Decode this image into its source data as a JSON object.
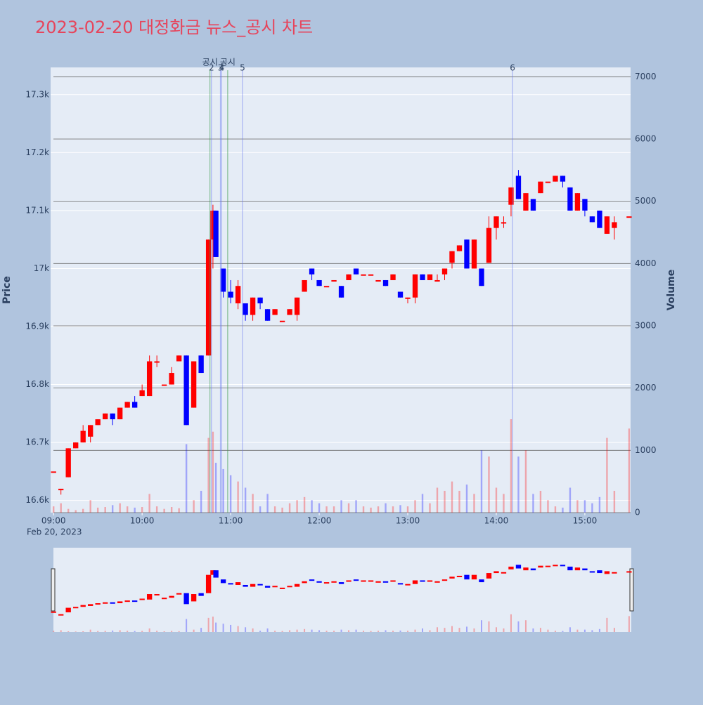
{
  "chart_data": {
    "type": "candlestick",
    "title": "2023-02-20 대정화금 뉴스_공시 차트",
    "yaxis_title": "Price",
    "y2axis_title": "Volume",
    "x_date_label": "Feb 20, 2023",
    "increasing_color": "#ff0000",
    "decreasing_color": "#0000ff",
    "x": [
      "09:00",
      "09:05",
      "09:10",
      "09:15",
      "09:20",
      "09:25",
      "09:30",
      "09:35",
      "09:40",
      "09:45",
      "09:50",
      "09:55",
      "10:00",
      "10:05",
      "10:10",
      "10:15",
      "10:20",
      "10:25",
      "10:30",
      "10:35",
      "10:40",
      "10:45",
      "10:48",
      "10:50",
      "10:55",
      "11:00",
      "11:05",
      "11:10",
      "11:15",
      "11:20",
      "11:25",
      "11:30",
      "11:35",
      "11:40",
      "11:45",
      "11:50",
      "11:55",
      "12:00",
      "12:05",
      "12:10",
      "12:15",
      "12:20",
      "12:25",
      "12:30",
      "12:35",
      "12:40",
      "12:45",
      "12:50",
      "12:55",
      "13:00",
      "13:05",
      "13:10",
      "13:15",
      "13:20",
      "13:25",
      "13:30",
      "13:35",
      "13:40",
      "13:45",
      "13:50",
      "13:55",
      "14:00",
      "14:05",
      "14:10",
      "14:15",
      "14:20",
      "14:25",
      "14:30",
      "14:35",
      "14:40",
      "14:45",
      "14:50",
      "14:55",
      "15:00",
      "15:05",
      "15:10",
      "15:15",
      "15:20",
      "15:30"
    ],
    "open": [
      16650,
      16620,
      16640,
      16690,
      16700,
      16710,
      16730,
      16740,
      16750,
      16740,
      16760,
      16770,
      16780,
      16780,
      16840,
      16800,
      16800,
      16840,
      16850,
      16760,
      16850,
      16850,
      17050,
      17100,
      17000,
      16960,
      16940,
      16940,
      16920,
      16950,
      16930,
      16920,
      16910,
      16920,
      16920,
      16960,
      17000,
      16980,
      16970,
      16980,
      16970,
      16980,
      17000,
      16990,
      16990,
      16980,
      16980,
      16980,
      16960,
      16950,
      16950,
      16990,
      16980,
      16980,
      16990,
      17010,
      17030,
      17050,
      17000,
      17000,
      17010,
      17070,
      17080,
      17110,
      17160,
      17100,
      17120,
      17130,
      17150,
      17150,
      17160,
      17140,
      17100,
      17120,
      17090,
      17100,
      17060,
      17070,
      17090
    ],
    "high": [
      16650,
      16620,
      16690,
      16700,
      16730,
      16730,
      16740,
      16750,
      16750,
      16760,
      16770,
      16780,
      16800,
      16850,
      16850,
      16800,
      16830,
      16850,
      16850,
      16840,
      16850,
      17050,
      17110,
      17100,
      17000,
      16980,
      16980,
      16940,
      16950,
      16950,
      16930,
      16930,
      16910,
      16930,
      16950,
      16980,
      17000,
      16980,
      16970,
      16980,
      16970,
      16990,
      17000,
      16990,
      16990,
      16980,
      16980,
      16990,
      16960,
      16950,
      16990,
      16990,
      16990,
      16990,
      17000,
      17030,
      17040,
      17050,
      17050,
      17000,
      17090,
      17090,
      17090,
      17140,
      17170,
      17130,
      17120,
      17150,
      17150,
      17160,
      17160,
      17140,
      17130,
      17120,
      17090,
      17100,
      17090,
      17090,
      17090
    ],
    "low": [
      16650,
      16610,
      16640,
      16690,
      16700,
      16700,
      16730,
      16740,
      16730,
      16740,
      16760,
      16760,
      16780,
      16780,
      16830,
      16800,
      16800,
      16840,
      16730,
      16760,
      16820,
      16850,
      17000,
      17020,
      16950,
      16940,
      16930,
      16910,
      16910,
      16930,
      16910,
      16920,
      16910,
      16920,
      16910,
      16960,
      16980,
      16970,
      16970,
      16980,
      16950,
      16980,
      16990,
      16990,
      16990,
      16980,
      16970,
      16980,
      16950,
      16940,
      16940,
      16980,
      16980,
      16980,
      16980,
      17000,
      17030,
      17000,
      17000,
      16970,
      17010,
      17050,
      17070,
      17090,
      17120,
      17100,
      17100,
      17130,
      17150,
      17150,
      17140,
      17100,
      17100,
      17090,
      17080,
      17070,
      17060,
      17050,
      17090
    ],
    "close": [
      16650,
      16620,
      16690,
      16700,
      16720,
      16730,
      16740,
      16750,
      16740,
      16760,
      16770,
      16760,
      16790,
      16840,
      16840,
      16800,
      16820,
      16850,
      16730,
      16840,
      16820,
      17050,
      17100,
      17020,
      16960,
      16950,
      16970,
      16920,
      16950,
      16940,
      16910,
      16930,
      16910,
      16930,
      16950,
      16980,
      16990,
      16970,
      16970,
      16980,
      16950,
      16990,
      16990,
      16990,
      16990,
      16980,
      16970,
      16990,
      16950,
      16950,
      16990,
      16980,
      16990,
      16980,
      17000,
      17030,
      17040,
      17000,
      17050,
      16970,
      17070,
      17090,
      17080,
      17140,
      17120,
      17130,
      17100,
      17150,
      17150,
      17160,
      17150,
      17100,
      17130,
      17100,
      17080,
      17070,
      17090,
      17080,
      17090
    ],
    "volume": [
      100,
      150,
      60,
      40,
      60,
      200,
      80,
      90,
      120,
      150,
      100,
      80,
      90,
      300,
      100,
      60,
      90,
      70,
      1100,
      200,
      350,
      1200,
      1300,
      800,
      700,
      600,
      500,
      400,
      300,
      100,
      300,
      100,
      80,
      150,
      200,
      250,
      200,
      150,
      100,
      100,
      200,
      150,
      200,
      100,
      80,
      100,
      150,
      100,
      120,
      100,
      200,
      300,
      150,
      400,
      350,
      500,
      350,
      450,
      300,
      1000,
      900,
      400,
      300,
      1500,
      900,
      1000,
      300,
      350,
      200,
      100,
      80,
      400,
      200,
      200,
      150,
      250,
      1200,
      350,
      1350
    ],
    "xlim": [
      "08:58",
      "15:31"
    ],
    "xticks": [
      "09:00",
      "10:00",
      "11:00",
      "12:00",
      "13:00",
      "14:00",
      "15:00"
    ],
    "ylim": [
      16579,
      17347
    ],
    "yticks": [
      {
        "value": 16600,
        "label": "16.6k"
      },
      {
        "value": 16700,
        "label": "16.7k"
      },
      {
        "value": 16800,
        "label": "16.8k"
      },
      {
        "value": 16900,
        "label": "16.9k"
      },
      {
        "value": 17000,
        "label": "17k"
      },
      {
        "value": 17100,
        "label": "17.1k"
      },
      {
        "value": 17200,
        "label": "17.2k"
      },
      {
        "value": 17300,
        "label": "17.3k"
      }
    ],
    "y2lim": [
      0,
      7150
    ],
    "y2ticks": [
      0,
      1000,
      2000,
      3000,
      4000,
      5000,
      6000,
      7000
    ],
    "news": [
      {
        "x": "10:47",
        "label": "2"
      },
      {
        "x": "10:53",
        "label": "3"
      },
      {
        "x": "10:54",
        "label": "4"
      },
      {
        "x": "11:08",
        "label": "5"
      },
      {
        "x": "14:11",
        "label": "6"
      }
    ],
    "disclosures": [
      {
        "x": "10:46",
        "label": "공시"
      },
      {
        "x": "10:58",
        "label": "공시"
      }
    ]
  }
}
